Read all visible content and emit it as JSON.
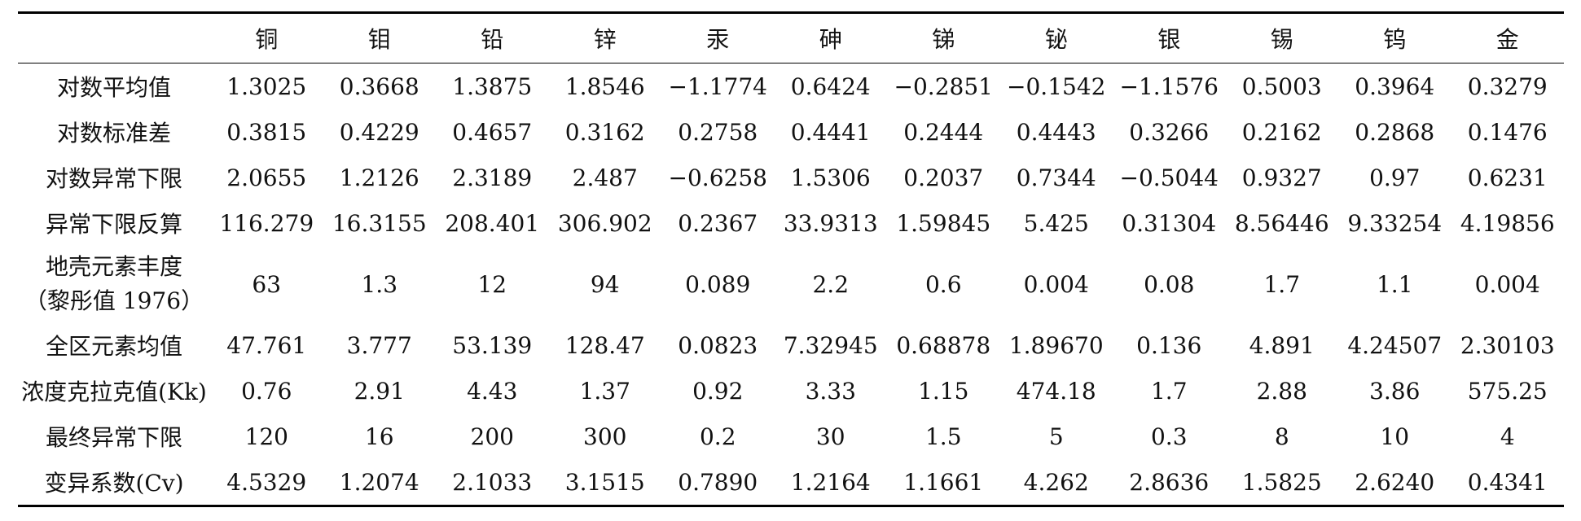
{
  "table": {
    "corner": "",
    "columns": [
      "铜",
      "钼",
      "铅",
      "锌",
      "汞",
      "砷",
      "锑",
      "铋",
      "银",
      "锡",
      "钨",
      "金"
    ],
    "rows": [
      {
        "label": "对数平均值",
        "values": [
          "1.3025",
          "0.3668",
          "1.3875",
          "1.8546",
          "−1.1774",
          "0.6424",
          "−0.2851",
          "−0.1542",
          "−1.1576",
          "0.5003",
          "0.3964",
          "0.3279"
        ]
      },
      {
        "label": "对数标准差",
        "values": [
          "0.3815",
          "0.4229",
          "0.4657",
          "0.3162",
          "0.2758",
          "0.4441",
          "0.2444",
          "0.4443",
          "0.3266",
          "0.2162",
          "0.2868",
          "0.1476"
        ]
      },
      {
        "label": "对数异常下限",
        "values": [
          "2.0655",
          "1.2126",
          "2.3189",
          "2.487",
          "−0.6258",
          "1.5306",
          "0.2037",
          "0.7344",
          "−0.5044",
          "0.9327",
          "0.97",
          "0.6231"
        ]
      },
      {
        "label": "异常下限反算",
        "values": [
          "116.279",
          "16.3155",
          "208.401",
          "306.902",
          "0.2367",
          "33.9313",
          "1.59845",
          "5.425",
          "0.31304",
          "8.56446",
          "9.33254",
          "4.19856"
        ]
      },
      {
        "label_line1": "地壳元素丰度",
        "label_line2": "（黎彤值 1976）",
        "values": [
          "63",
          "1.3",
          "12",
          "94",
          "0.089",
          "2.2",
          "0.6",
          "0.004",
          "0.08",
          "1.7",
          "1.1",
          "0.004"
        ]
      },
      {
        "label": "全区元素均值",
        "values": [
          "47.761",
          "3.777",
          "53.139",
          "128.47",
          "0.0823",
          "7.32945",
          "0.68878",
          "1.89670",
          "0.136",
          "4.891",
          "4.24507",
          "2.30103"
        ]
      },
      {
        "label": "浓度克拉克值(Kk)",
        "values": [
          "0.76",
          "2.91",
          "4.43",
          "1.37",
          "0.92",
          "3.33",
          "1.15",
          "474.18",
          "1.7",
          "2.88",
          "3.86",
          "575.25"
        ]
      },
      {
        "label": "最终异常下限",
        "values": [
          "120",
          "16",
          "200",
          "300",
          "0.2",
          "30",
          "1.5",
          "5",
          "0.3",
          "8",
          "10",
          "4"
        ]
      },
      {
        "label": "变异系数(Cv)",
        "values": [
          "4.5329",
          "1.2074",
          "2.1033",
          "3.1515",
          "0.7890",
          "1.2164",
          "1.1661",
          "4.262",
          "2.8636",
          "1.5825",
          "2.6240",
          "0.4341"
        ]
      }
    ]
  }
}
